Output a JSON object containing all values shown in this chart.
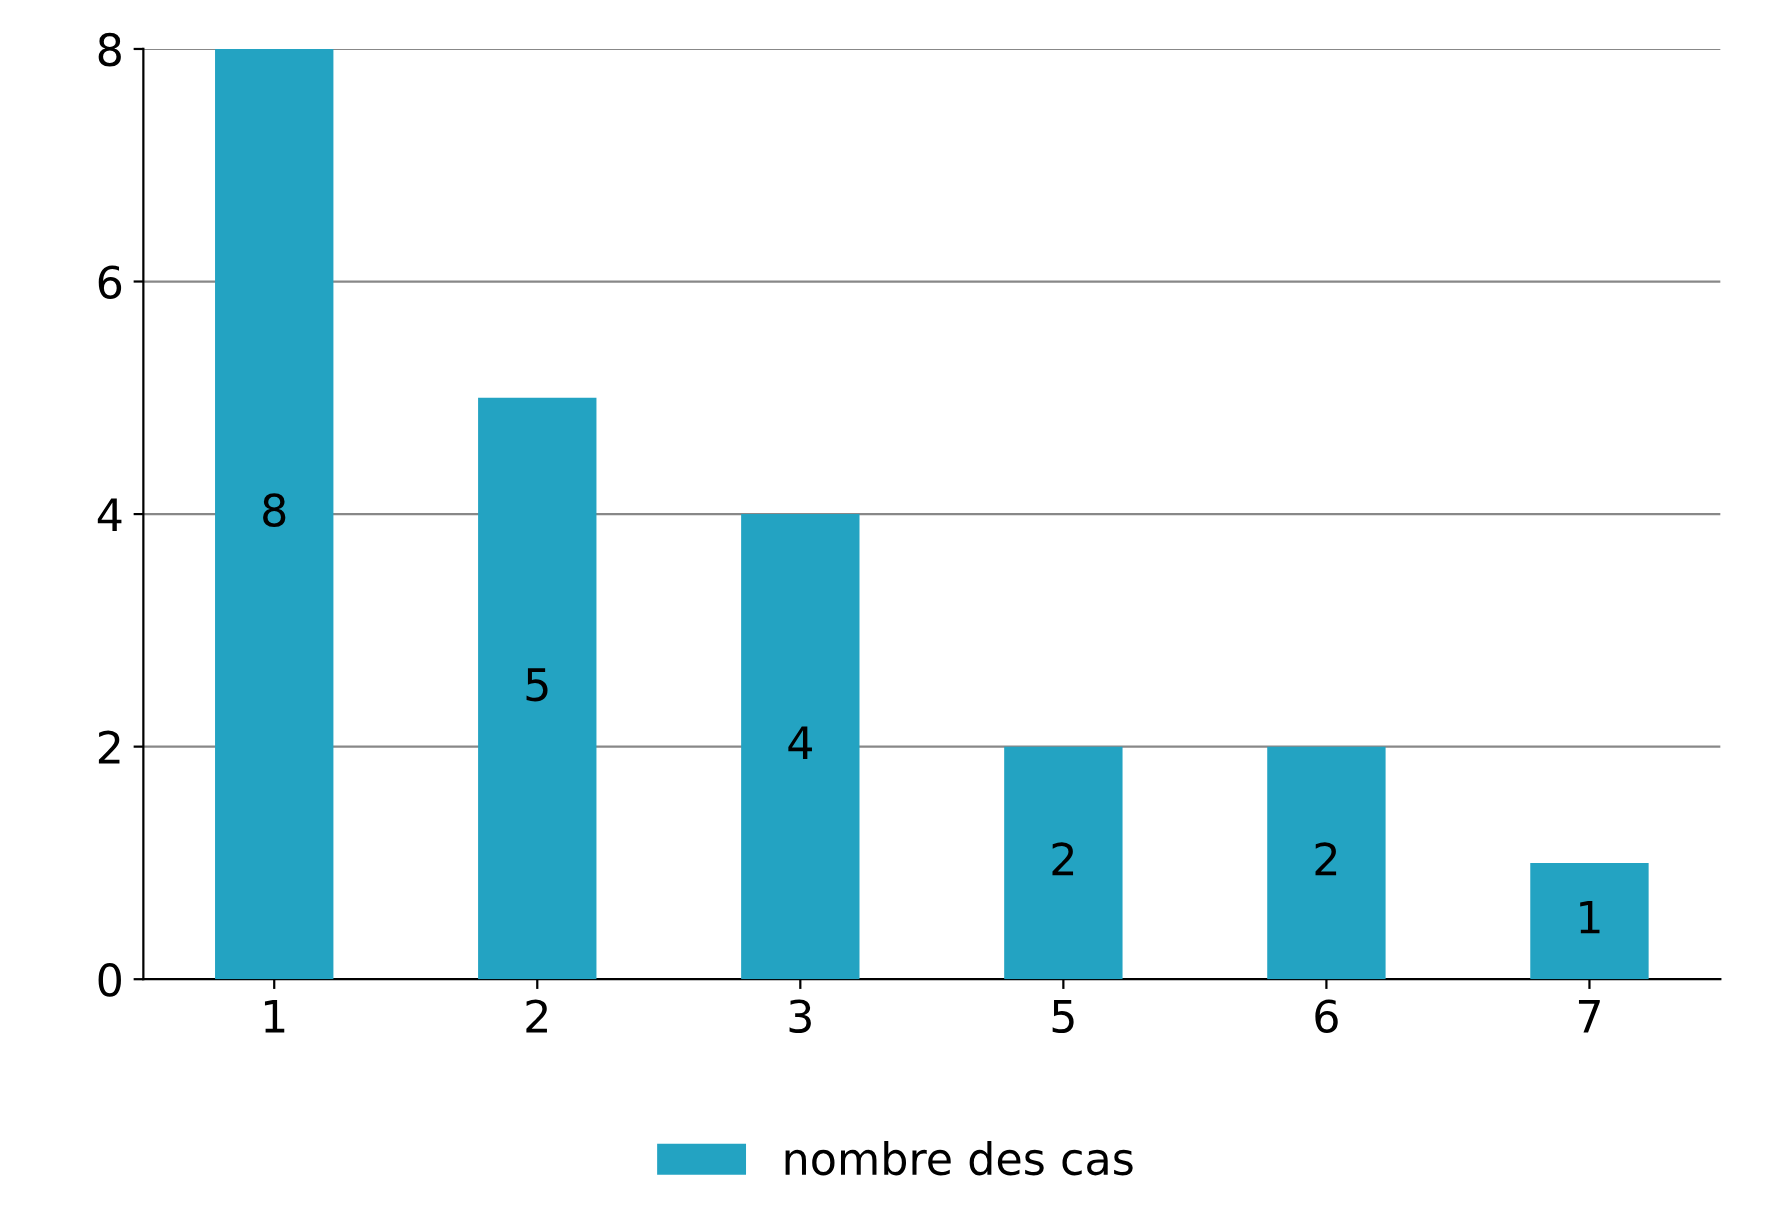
{
  "chart_data": {
    "type": "bar",
    "categories": [
      "1",
      "2",
      "3",
      "5",
      "6",
      "7"
    ],
    "series": [
      {
        "name": "nombre des cas",
        "color": "#23a3c2",
        "values": [
          8,
          5,
          4,
          2,
          2,
          1
        ]
      }
    ],
    "ylim": [
      0,
      8
    ],
    "yticks": [
      0,
      2,
      4,
      6,
      8
    ],
    "grid": "y",
    "data_labels": true,
    "legend": "bottom"
  }
}
